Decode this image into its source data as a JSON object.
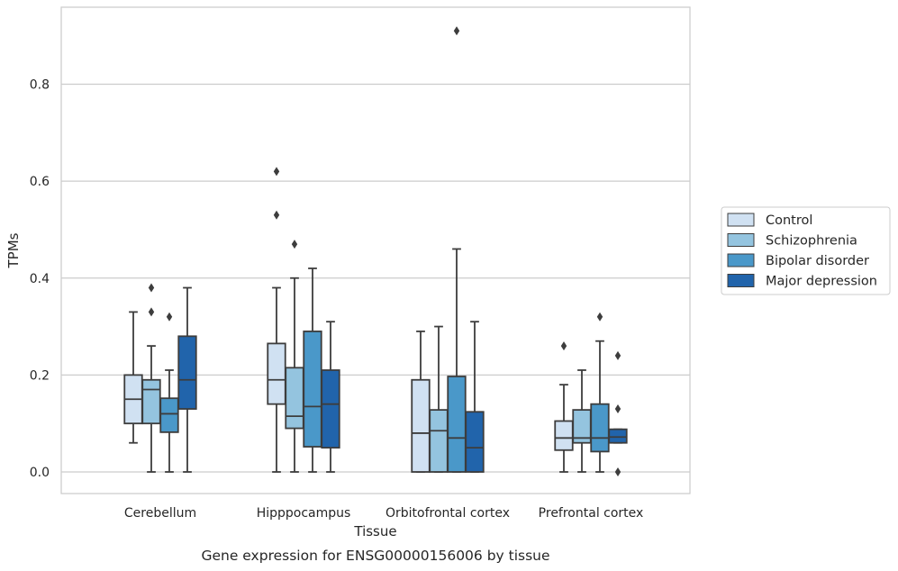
{
  "chart_data": {
    "type": "boxplot",
    "title": "",
    "caption": "Gene expression for ENSG00000156006 by tissue",
    "xlabel": "Tissue",
    "ylabel": "TPMs",
    "ylim": [
      -0.045,
      0.96
    ],
    "yticks": [
      "0.0",
      "0.2",
      "0.4",
      "0.6",
      "0.8"
    ],
    "ytick_values": [
      0.0,
      0.2,
      0.4,
      0.6,
      0.8
    ],
    "grid": "horizontal",
    "legend_position": "right",
    "categories": [
      "Cerebellum",
      "Hipppocampus",
      "Orbitofrontal cortex",
      "Prefrontal cortex"
    ],
    "series": [
      {
        "name": "Control",
        "color": "#d0e1f2",
        "boxes": [
          {
            "whislo": 0.06,
            "q1": 0.1,
            "med": 0.15,
            "q3": 0.2,
            "whishi": 0.33,
            "fliers": []
          },
          {
            "whislo": 0.0,
            "q1": 0.14,
            "med": 0.19,
            "q3": 0.265,
            "whishi": 0.38,
            "fliers": [
              0.62,
              0.53
            ]
          },
          {
            "whislo": 0.0,
            "q1": 0.0,
            "med": 0.08,
            "q3": 0.19,
            "whishi": 0.29,
            "fliers": []
          },
          {
            "whislo": 0.0,
            "q1": 0.045,
            "med": 0.07,
            "q3": 0.105,
            "whishi": 0.18,
            "fliers": [
              0.26
            ]
          }
        ]
      },
      {
        "name": "Schizophrenia",
        "color": "#94c4df",
        "boxes": [
          {
            "whislo": 0.0,
            "q1": 0.1,
            "med": 0.17,
            "q3": 0.19,
            "whishi": 0.26,
            "fliers": [
              0.38,
              0.33
            ]
          },
          {
            "whislo": 0.0,
            "q1": 0.09,
            "med": 0.115,
            "q3": 0.215,
            "whishi": 0.4,
            "fliers": [
              0.47
            ]
          },
          {
            "whislo": 0.0,
            "q1": 0.0,
            "med": 0.085,
            "q3": 0.128,
            "whishi": 0.3,
            "fliers": []
          },
          {
            "whislo": 0.0,
            "q1": 0.06,
            "med": 0.07,
            "q3": 0.128,
            "whishi": 0.21,
            "fliers": []
          }
        ]
      },
      {
        "name": "Bipolar disorder",
        "color": "#4a98c9",
        "boxes": [
          {
            "whislo": 0.0,
            "q1": 0.082,
            "med": 0.12,
            "q3": 0.152,
            "whishi": 0.21,
            "fliers": [
              0.32
            ]
          },
          {
            "whislo": 0.0,
            "q1": 0.052,
            "med": 0.135,
            "q3": 0.29,
            "whishi": 0.42,
            "fliers": []
          },
          {
            "whislo": 0.0,
            "q1": 0.0,
            "med": 0.07,
            "q3": 0.197,
            "whishi": 0.46,
            "fliers": [
              0.91
            ]
          },
          {
            "whislo": 0.0,
            "q1": 0.042,
            "med": 0.07,
            "q3": 0.14,
            "whishi": 0.27,
            "fliers": [
              0.32
            ]
          }
        ]
      },
      {
        "name": "Major depression",
        "color": "#2164ab",
        "boxes": [
          {
            "whislo": 0.0,
            "q1": 0.13,
            "med": 0.19,
            "q3": 0.28,
            "whishi": 0.38,
            "fliers": []
          },
          {
            "whislo": 0.0,
            "q1": 0.05,
            "med": 0.14,
            "q3": 0.21,
            "whishi": 0.31,
            "fliers": []
          },
          {
            "whislo": 0.0,
            "q1": 0.0,
            "med": 0.05,
            "q3": 0.124,
            "whishi": 0.31,
            "fliers": []
          },
          {
            "whislo": 0.06,
            "q1": 0.06,
            "med": 0.072,
            "q3": 0.088,
            "whishi": 0.088,
            "fliers": [
              0.24,
              0.13,
              0.0
            ]
          }
        ]
      }
    ]
  }
}
